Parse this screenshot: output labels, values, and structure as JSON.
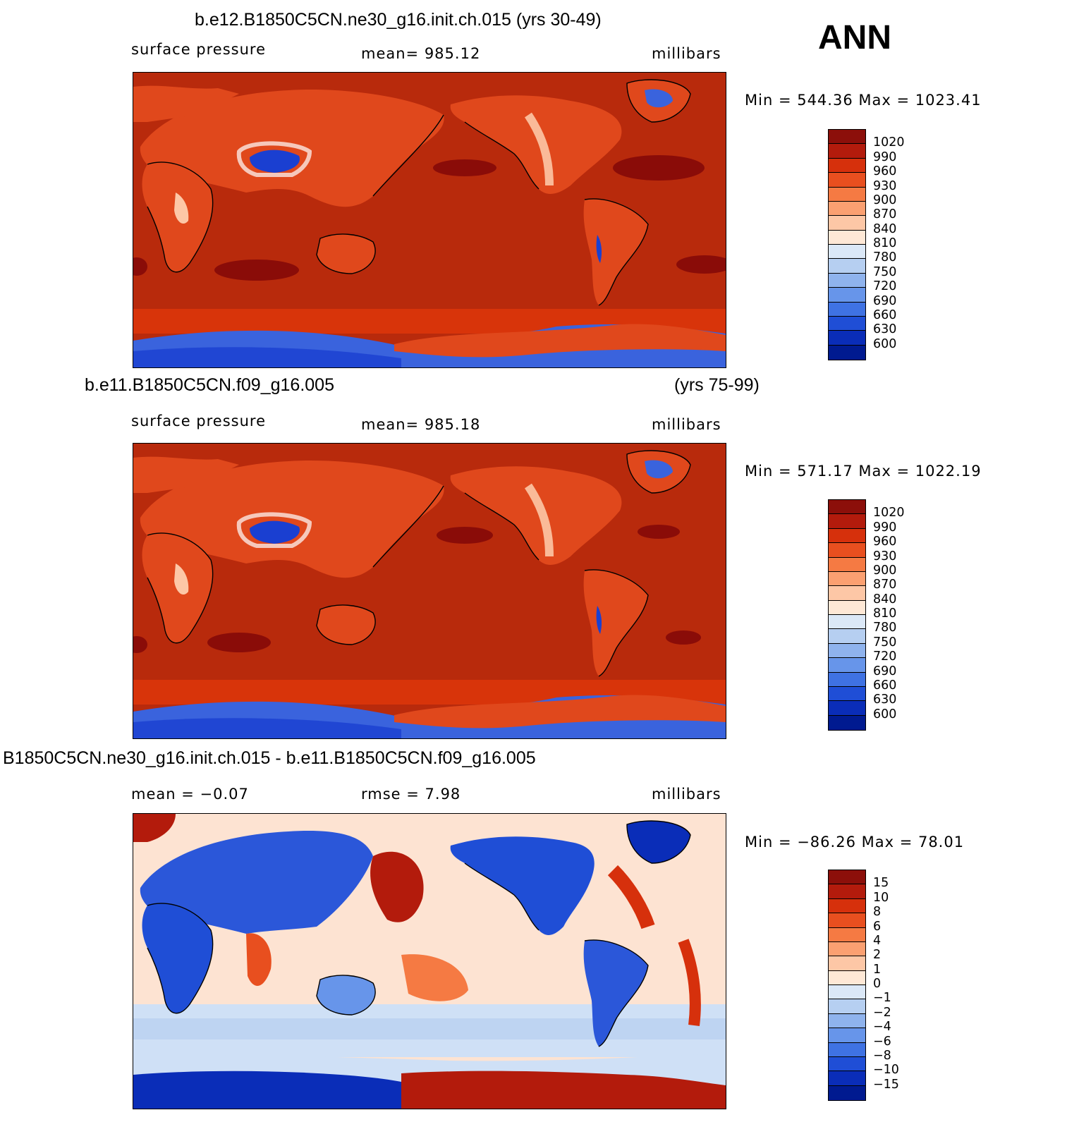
{
  "season": "ANN",
  "panels": [
    {
      "id": "case1",
      "title": "b.e12.B1850C5CN.ne30_g16.init.ch.015 (yrs 30-49)",
      "title_years": "",
      "left_label": "surface pressure",
      "center_label": "mean=  985.12",
      "units": "millibars",
      "minmax": "Min  =  544.36  Max  =  1023.41",
      "colorbar": {
        "labels": [
          "1020",
          "990",
          "960",
          "930",
          "900",
          "870",
          "840",
          "810",
          "780",
          "750",
          "720",
          "690",
          "660",
          "630",
          "600"
        ],
        "colors": [
          "#8c0f0a",
          "#b31b0c",
          "#d6300c",
          "#e84f1f",
          "#f57a43",
          "#fba071",
          "#fdc7a6",
          "#fee8d6",
          "#dbe8f7",
          "#b6cff1",
          "#8fb3ed",
          "#6795ea",
          "#3f72e3",
          "#1f4ed6",
          "#0a2db8",
          "#001a90"
        ]
      },
      "map": {
        "background": "#b82a0c",
        "land": "#e0481c",
        "low_pressure": "#1a3fd1",
        "polar": "#3a63dd",
        "band": "#d8340a",
        "high_cells": "#8a0c08"
      }
    },
    {
      "id": "case2",
      "title": "b.e11.B1850C5CN.f09_g16.005",
      "title_years": "(yrs 75-99)",
      "left_label": "surface pressure",
      "center_label": "mean=  985.18",
      "units": "millibars",
      "minmax": "Min  =  571.17  Max  =  1022.19",
      "colorbar": {
        "labels": [
          "1020",
          "990",
          "960",
          "930",
          "900",
          "870",
          "840",
          "810",
          "780",
          "750",
          "720",
          "690",
          "660",
          "630",
          "600"
        ],
        "colors": [
          "#8c0f0a",
          "#b31b0c",
          "#d6300c",
          "#e84f1f",
          "#f57a43",
          "#fba071",
          "#fdc7a6",
          "#fee8d6",
          "#dbe8f7",
          "#b6cff1",
          "#8fb3ed",
          "#6795ea",
          "#3f72e3",
          "#1f4ed6",
          "#0a2db8",
          "#001a90"
        ]
      },
      "map": {
        "background": "#b82a0c",
        "land": "#e0481c",
        "low_pressure": "#1a3fd1",
        "polar": "#3a63dd",
        "band": "#d8340a",
        "high_cells": "#8a0c08"
      }
    },
    {
      "id": "diff",
      "title": "B1850C5CN.ne30_g16.init.ch.015 - b.e11.B1850C5CN.f09_g16.005",
      "title_years": "",
      "left_label": "mean  =   −0.07",
      "center_label": "rmse  =     7.98",
      "units": "millibars",
      "minmax": "Min  =  −86.26  Max  =    78.01",
      "colorbar": {
        "labels": [
          "15",
          "10",
          "8",
          "6",
          "4",
          "2",
          "1",
          "0",
          "−1",
          "−2",
          "−4",
          "−6",
          "−8",
          "−10",
          "−15"
        ],
        "colors": [
          "#8c0f0a",
          "#b31b0c",
          "#d6300c",
          "#e84f1f",
          "#f57a43",
          "#fba071",
          "#fdc7a6",
          "#fee8d6",
          "#dbe8f7",
          "#b6cff1",
          "#8fb3ed",
          "#6795ea",
          "#3f72e3",
          "#1f4ed6",
          "#0a2db8",
          "#001a90"
        ]
      },
      "map": {
        "background": "#fde3d2",
        "land": "#2b57d9",
        "low_pressure": "#0a2db8",
        "polar": "#0a2db8",
        "band": "#cfe0f6",
        "high_cells": "#b31b0c"
      }
    }
  ]
}
